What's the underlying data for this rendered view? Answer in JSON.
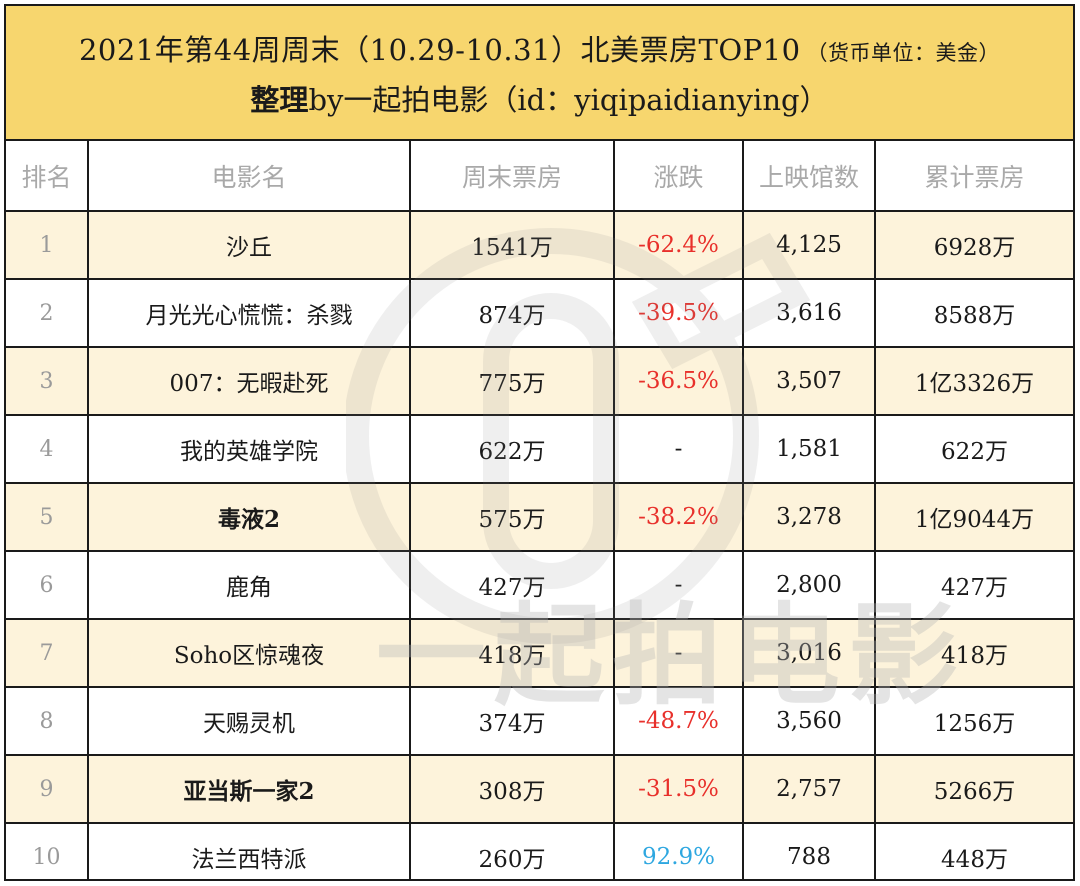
{
  "header": {
    "title": "2021年第44周周末（10.29-10.31）北美票房TOP10",
    "unit_note": "（货币单位：美金）",
    "credit_prefix": "整理",
    "credit_rest": "by一起拍电影（id：yiqipaidianying）"
  },
  "table": {
    "columns": [
      "排名",
      "电影名",
      "周末票房",
      "涨跌",
      "上映馆数",
      "累计票房"
    ],
    "rows": [
      {
        "rank": "1",
        "title": "沙丘",
        "weekend": "1541万",
        "change": "-62.4%",
        "trend": "down",
        "theaters": "4,125",
        "total": "6928万"
      },
      {
        "rank": "2",
        "title": "月光光心慌慌：杀戮",
        "weekend": "874万",
        "change": "-39.5%",
        "trend": "down",
        "theaters": "3,616",
        "total": "8588万"
      },
      {
        "rank": "3",
        "title": "007：无暇赴死",
        "weekend": "775万",
        "change": "-36.5%",
        "trend": "down",
        "theaters": "3,507",
        "total": "1亿3326万"
      },
      {
        "rank": "4",
        "title": "我的英雄学院",
        "weekend": "622万",
        "change": "-",
        "trend": "none",
        "theaters": "1,581",
        "total": "622万"
      },
      {
        "rank": "5",
        "title": "毒液2",
        "weekend": "575万",
        "change": "-38.2%",
        "trend": "down",
        "theaters": "3,278",
        "total": "1亿9044万",
        "bold": true
      },
      {
        "rank": "6",
        "title": "鹿角",
        "weekend": "427万",
        "change": "-",
        "trend": "none",
        "theaters": "2,800",
        "total": "427万"
      },
      {
        "rank": "7",
        "title": "Soho区惊魂夜",
        "weekend": "418万",
        "change": "-",
        "trend": "none",
        "theaters": "3,016",
        "total": "418万"
      },
      {
        "rank": "8",
        "title": "天赐灵机",
        "weekend": "374万",
        "change": "-48.7%",
        "trend": "down",
        "theaters": "3,560",
        "total": "1256万"
      },
      {
        "rank": "9",
        "title": "亚当斯一家2",
        "weekend": "308万",
        "change": "-31.5%",
        "trend": "down",
        "theaters": "2,757",
        "total": "5266万",
        "bold": true
      },
      {
        "rank": "10",
        "title": "法兰西特派",
        "weekend": "260万",
        "change": "92.9%",
        "trend": "up",
        "theaters": "788",
        "total": "448万"
      }
    ]
  },
  "watermark": {
    "text": "一起拍电影"
  },
  "colors": {
    "header_bg": "#f7d66e",
    "row_highlight": "#fcf0d4",
    "down": "#e8302b",
    "up": "#2ea7e0",
    "header_text": "#a9a9a9"
  }
}
